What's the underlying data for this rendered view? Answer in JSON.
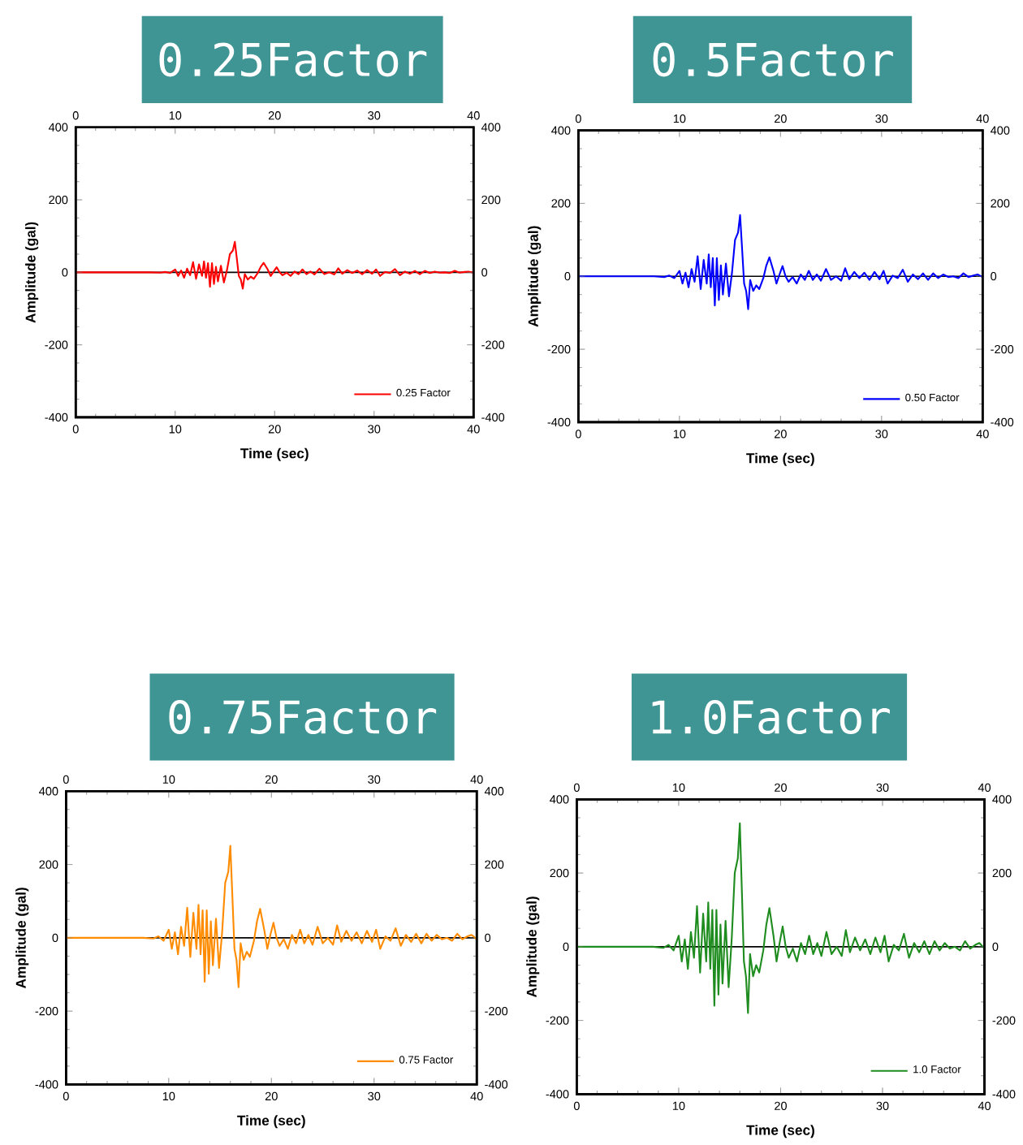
{
  "chart_data": [
    {
      "type": "line",
      "title": "0.25Factor",
      "xlabel": "Time (sec)",
      "ylabel": "Amplitude (gal)",
      "x": [
        0,
        7.5,
        8.5,
        9,
        9.5,
        10,
        10.3,
        10.6,
        10.9,
        11.2,
        11.5,
        11.8,
        12.1,
        12.4,
        12.7,
        12.9,
        13.1,
        13.3,
        13.5,
        13.7,
        13.9,
        14.1,
        14.3,
        14.6,
        14.9,
        15.2,
        15.5,
        15.8,
        16,
        16.2,
        16.4,
        16.6,
        16.8,
        17,
        17.3,
        17.6,
        17.9,
        18.3,
        18.6,
        18.9,
        19.3,
        19.6,
        19.9,
        20.2,
        20.5,
        20.8,
        21.2,
        21.6,
        22,
        22.4,
        22.8,
        23.2,
        23.6,
        24,
        24.5,
        25,
        25.5,
        26,
        26.4,
        26.8,
        27.3,
        27.8,
        28.3,
        28.8,
        29.3,
        29.8,
        30.2,
        30.6,
        31.1,
        31.6,
        32.1,
        32.6,
        33.1,
        33.6,
        34.1,
        34.6,
        35.1,
        35.6,
        36.1,
        36.6,
        37.1,
        37.6,
        38.1,
        38.6,
        39.1,
        39.5,
        40
      ],
      "series": [
        {
          "name": "0.25 Factor",
          "color": "#ff0000",
          "values": [
            0,
            0,
            -1,
            1,
            -2,
            8,
            -10,
            5,
            -15,
            10,
            -8,
            28,
            -18,
            22,
            -10,
            30,
            -15,
            25,
            -40,
            25,
            -32,
            15,
            -25,
            18,
            -28,
            5,
            50,
            60,
            84,
            38,
            -10,
            -20,
            -45,
            -5,
            -20,
            -12,
            -18,
            -2,
            15,
            26,
            8,
            -10,
            2,
            14,
            0,
            -8,
            -1,
            -10,
            2,
            -5,
            8,
            -5,
            2,
            -6,
            10,
            -5,
            0,
            -6,
            11,
            -4,
            6,
            -2,
            5,
            -5,
            6,
            -4,
            8,
            -10,
            1,
            -2,
            9,
            -8,
            2,
            -4,
            4,
            -5,
            4,
            -2,
            2,
            -1,
            0,
            -2,
            4,
            -1,
            1,
            2,
            -1
          ]
        }
      ],
      "xlim": [
        0,
        40
      ],
      "xticks": [
        0,
        10,
        20,
        30,
        40
      ],
      "ylim": [
        -400,
        400
      ],
      "yticks": [
        -400,
        -200,
        0,
        200,
        400
      ],
      "x2lim": [
        0,
        40
      ],
      "x2ticks": [
        0,
        10,
        20,
        30,
        40
      ],
      "y2lim": [
        -400,
        400
      ],
      "y2ticks": [
        -400,
        -200,
        0,
        200,
        400
      ],
      "ref_lines": [
        {
          "axis": "y",
          "value": 0,
          "color": "#000000"
        }
      ],
      "legend": "bottom right"
    },
    {
      "type": "line",
      "title": "0.5Factor",
      "xlabel": "Time (sec)",
      "ylabel": "Amplitude (gal)",
      "x": [
        0,
        7.5,
        8.5,
        9,
        9.5,
        10,
        10.3,
        10.6,
        10.9,
        11.2,
        11.5,
        11.8,
        12.1,
        12.4,
        12.7,
        12.9,
        13.1,
        13.3,
        13.5,
        13.7,
        13.9,
        14.1,
        14.3,
        14.6,
        14.9,
        15.2,
        15.5,
        15.8,
        16,
        16.2,
        16.4,
        16.6,
        16.8,
        17,
        17.3,
        17.6,
        17.9,
        18.3,
        18.6,
        18.9,
        19.3,
        19.6,
        19.9,
        20.2,
        20.5,
        20.8,
        21.2,
        21.6,
        22,
        22.4,
        22.8,
        23.2,
        23.6,
        24,
        24.5,
        25,
        25.5,
        26,
        26.4,
        26.8,
        27.3,
        27.8,
        28.3,
        28.8,
        29.3,
        29.8,
        30.2,
        30.6,
        31.1,
        31.6,
        32.1,
        32.6,
        33.1,
        33.6,
        34.1,
        34.6,
        35.1,
        35.6,
        36.1,
        36.6,
        37.1,
        37.6,
        38.1,
        38.6,
        39.1,
        39.5,
        40
      ],
      "series": [
        {
          "name": "0.50 Factor",
          "color": "#0000ff",
          "values": [
            0,
            0,
            -2,
            2,
            -5,
            15,
            -20,
            10,
            -30,
            20,
            -15,
            55,
            -35,
            45,
            -20,
            60,
            -30,
            50,
            -80,
            50,
            -65,
            30,
            -50,
            35,
            -55,
            10,
            100,
            120,
            168,
            75,
            -20,
            -40,
            -90,
            -10,
            -40,
            -25,
            -35,
            -5,
            30,
            52,
            15,
            -20,
            5,
            28,
            0,
            -15,
            -2,
            -20,
            5,
            -10,
            15,
            -10,
            5,
            -12,
            20,
            -10,
            0,
            -12,
            22,
            -8,
            12,
            -5,
            10,
            -10,
            12,
            -8,
            15,
            -20,
            2,
            -5,
            18,
            -15,
            5,
            -8,
            8,
            -10,
            8,
            -5,
            5,
            -2,
            0,
            -5,
            8,
            -2,
            2,
            5,
            -2
          ]
        }
      ],
      "xlim": [
        0,
        40
      ],
      "xticks": [
        0,
        10,
        20,
        30,
        40
      ],
      "ylim": [
        -400,
        400
      ],
      "yticks": [
        -400,
        -200,
        0,
        200,
        400
      ],
      "x2lim": [
        0,
        40
      ],
      "x2ticks": [
        0,
        10,
        20,
        30,
        40
      ],
      "y2lim": [
        -400,
        400
      ],
      "y2ticks": [
        -400,
        -200,
        0,
        200,
        400
      ],
      "ref_lines": [
        {
          "axis": "y",
          "value": 0,
          "color": "#000000"
        }
      ],
      "legend": "bottom right"
    },
    {
      "type": "line",
      "title": "0.75Factor",
      "xlabel": "Time (sec)",
      "ylabel": "Amplitude (gal)",
      "x": [
        0,
        7.5,
        8.5,
        9,
        9.5,
        10,
        10.3,
        10.6,
        10.9,
        11.2,
        11.5,
        11.8,
        12.1,
        12.4,
        12.7,
        12.9,
        13.1,
        13.3,
        13.5,
        13.7,
        13.9,
        14.1,
        14.3,
        14.6,
        14.9,
        15.2,
        15.5,
        15.8,
        16,
        16.2,
        16.4,
        16.6,
        16.8,
        17,
        17.3,
        17.6,
        17.9,
        18.3,
        18.6,
        18.9,
        19.3,
        19.6,
        19.9,
        20.2,
        20.5,
        20.8,
        21.2,
        21.6,
        22,
        22.4,
        22.8,
        23.2,
        23.6,
        24,
        24.5,
        25,
        25.5,
        26,
        26.4,
        26.8,
        27.3,
        27.8,
        28.3,
        28.8,
        29.3,
        29.8,
        30.2,
        30.6,
        31.1,
        31.6,
        32.1,
        32.6,
        33.1,
        33.6,
        34.1,
        34.6,
        35.1,
        35.6,
        36.1,
        36.6,
        37.1,
        37.6,
        38.1,
        38.6,
        39.1,
        39.5,
        40
      ],
      "series": [
        {
          "name": "0.75 Factor",
          "color": "#ff8c00",
          "values": [
            0,
            0,
            -2,
            4,
            -8,
            22,
            -30,
            15,
            -45,
            30,
            -22,
            82,
            -52,
            68,
            -30,
            90,
            -45,
            75,
            -120,
            75,
            -98,
            45,
            -75,
            52,
            -82,
            15,
            150,
            180,
            251,
            112,
            -30,
            -60,
            -135,
            -15,
            -60,
            -38,
            -52,
            -8,
            45,
            79,
            22,
            -30,
            8,
            41,
            0,
            -22,
            -4,
            -30,
            8,
            -15,
            22,
            -15,
            8,
            -19,
            30,
            -15,
            0,
            -19,
            34,
            -11,
            19,
            -8,
            15,
            -15,
            19,
            -11,
            22,
            -30,
            4,
            -8,
            26,
            -22,
            8,
            -11,
            11,
            -15,
            11,
            -8,
            8,
            -4,
            0,
            -8,
            11,
            -4,
            4,
            8,
            -4
          ]
        }
      ],
      "xlim": [
        0,
        40
      ],
      "xticks": [
        0,
        10,
        20,
        30,
        40
      ],
      "ylim": [
        -400,
        400
      ],
      "yticks": [
        -400,
        -200,
        0,
        200,
        400
      ],
      "x2lim": [
        0,
        40
      ],
      "x2ticks": [
        0,
        10,
        20,
        30,
        40
      ],
      "y2lim": [
        -400,
        400
      ],
      "y2ticks": [
        -400,
        -200,
        0,
        200,
        400
      ],
      "ref_lines": [
        {
          "axis": "y",
          "value": 0,
          "color": "#000000"
        }
      ],
      "legend": "bottom right"
    },
    {
      "type": "line",
      "title": "1.0Factor",
      "xlabel": "Time (sec)",
      "ylabel": "Amplitude (gal)",
      "x": [
        0,
        7.5,
        8.5,
        9,
        9.5,
        10,
        10.3,
        10.6,
        10.9,
        11.2,
        11.5,
        11.8,
        12.1,
        12.4,
        12.7,
        12.9,
        13.1,
        13.3,
        13.5,
        13.7,
        13.9,
        14.1,
        14.3,
        14.6,
        14.9,
        15.2,
        15.5,
        15.8,
        16,
        16.2,
        16.4,
        16.6,
        16.8,
        17,
        17.3,
        17.6,
        17.9,
        18.3,
        18.6,
        18.9,
        19.3,
        19.6,
        19.9,
        20.2,
        20.5,
        20.8,
        21.2,
        21.6,
        22,
        22.4,
        22.8,
        23.2,
        23.6,
        24,
        24.5,
        25,
        25.5,
        26,
        26.4,
        26.8,
        27.3,
        27.8,
        28.3,
        28.8,
        29.3,
        29.8,
        30.2,
        30.6,
        31.1,
        31.6,
        32.1,
        32.6,
        33.1,
        33.6,
        34.1,
        34.6,
        35.1,
        35.6,
        36.1,
        36.6,
        37.1,
        37.6,
        38.1,
        38.6,
        39.1,
        39.5,
        40
      ],
      "series": [
        {
          "name": "1.0 Factor",
          "color": "#1e8c1e",
          "values": [
            0,
            0,
            -3,
            5,
            -10,
            30,
            -40,
            20,
            -60,
            40,
            -30,
            110,
            -70,
            90,
            -40,
            120,
            -60,
            100,
            -160,
            100,
            -130,
            60,
            -100,
            70,
            -110,
            20,
            200,
            240,
            335,
            150,
            -40,
            -80,
            -180,
            -20,
            -80,
            -50,
            -70,
            -10,
            60,
            105,
            30,
            -40,
            10,
            55,
            0,
            -30,
            -5,
            -40,
            10,
            -20,
            30,
            -20,
            10,
            -25,
            40,
            -20,
            0,
            -25,
            45,
            -15,
            25,
            -10,
            20,
            -20,
            25,
            -15,
            30,
            -40,
            5,
            -10,
            35,
            -30,
            10,
            -15,
            15,
            -20,
            15,
            -10,
            10,
            -5,
            0,
            -10,
            15,
            -5,
            5,
            10,
            -5
          ]
        }
      ],
      "xlim": [
        0,
        40
      ],
      "xticks": [
        0,
        10,
        20,
        30,
        40
      ],
      "ylim": [
        -400,
        400
      ],
      "yticks": [
        -400,
        -200,
        0,
        200,
        400
      ],
      "x2lim": [
        0,
        40
      ],
      "x2ticks": [
        0,
        10,
        20,
        30,
        40
      ],
      "y2lim": [
        -400,
        400
      ],
      "y2ticks": [
        -400,
        -200,
        0,
        200,
        400
      ],
      "ref_lines": [
        {
          "axis": "y",
          "value": 0,
          "color": "#000000"
        }
      ],
      "legend": "bottom right"
    }
  ]
}
